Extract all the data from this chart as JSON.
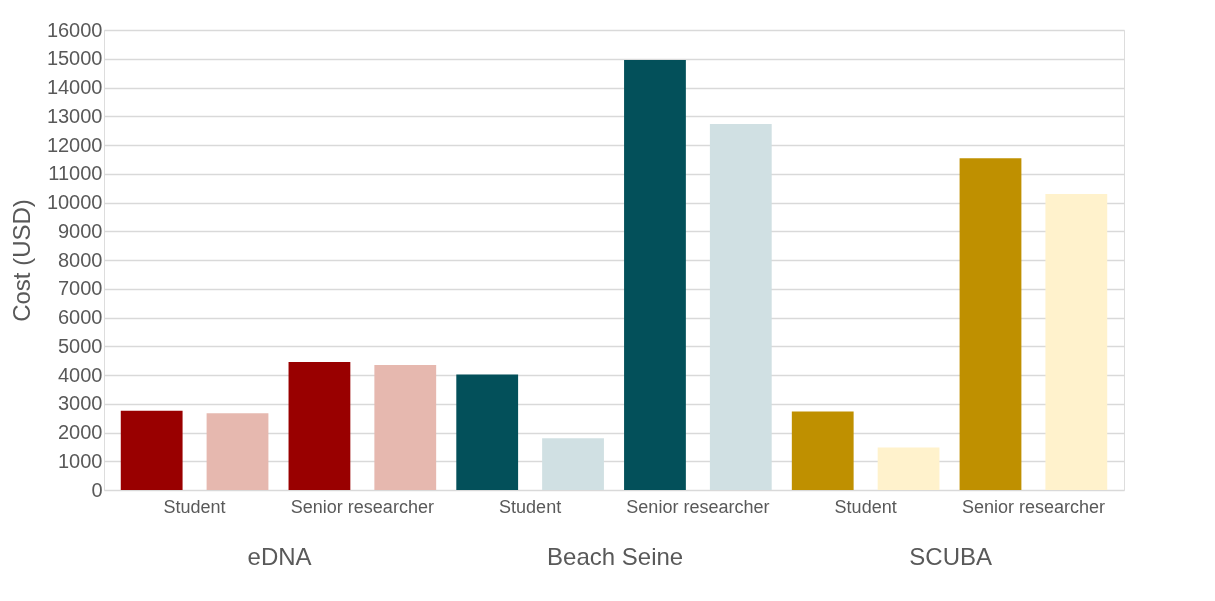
{
  "chart_data": {
    "type": "bar",
    "ylabel": "Cost (USD)",
    "categories": [
      "Student",
      "Senior researcher",
      "Student",
      "Senior researcher",
      "Student",
      "Senior researcher"
    ],
    "series": [
      {
        "colors": [
          "#990000",
          "#990000",
          "#03505a",
          "#03505a",
          "#bf9000",
          "#bf9000"
        ],
        "values": [
          2760,
          4450,
          4020,
          14960,
          2730,
          11540
        ]
      },
      {
        "colors": [
          "#e6b8af",
          "#e6b8af",
          "#d0e0e3",
          "#d0e0e3",
          "#fff2cc",
          "#fff2cc"
        ],
        "values": [
          2670,
          4350,
          1800,
          12730,
          1480,
          10300
        ]
      }
    ],
    "ylim": [
      0,
      16000
    ],
    "yticks": [
      0,
      1000,
      2000,
      3000,
      4000,
      5000,
      6000,
      7000,
      8000,
      9000,
      10000,
      11000,
      12000,
      13000,
      14000,
      15000,
      16000
    ],
    "grid": "y",
    "annotations": [
      "eDNA",
      "Beach Seine",
      "SCUBA"
    ]
  }
}
